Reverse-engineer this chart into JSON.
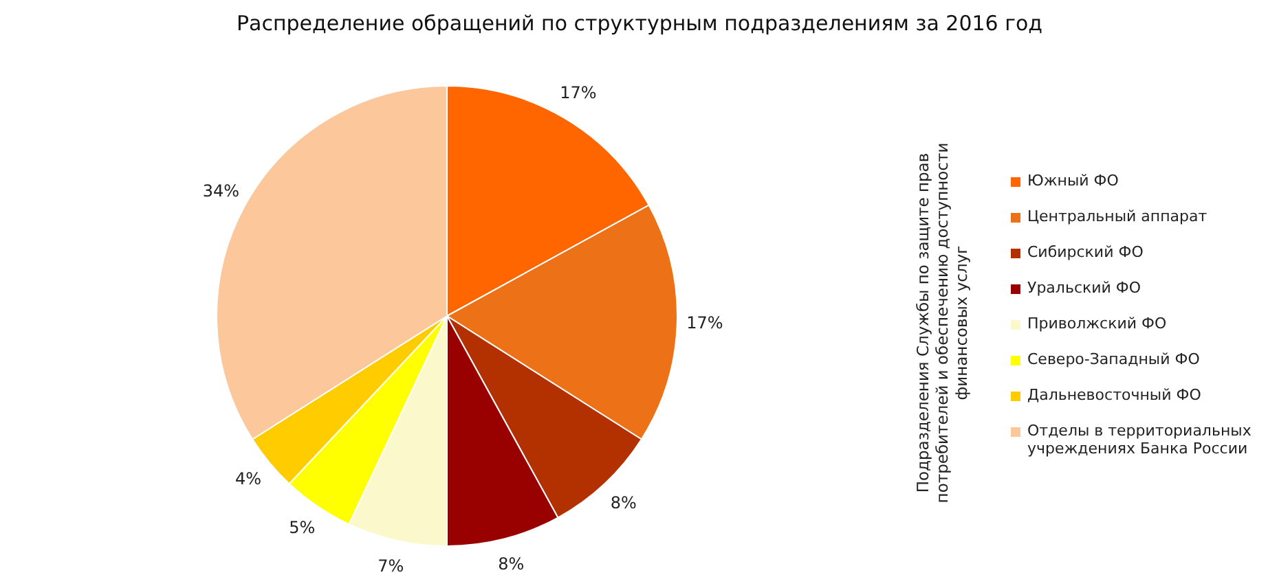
{
  "chart_data": {
    "type": "pie",
    "title": "Распределение обращений по структурным подразделениям за 2016 год",
    "legend_title": "Подразделения Службы по защите прав потребителей и обеспечению доступности финансовых  услуг",
    "legend": "right",
    "categories": [
      "Южный ФО",
      "Центральный аппарат",
      "Сибирский ФО",
      "Уральский ФО",
      "Приволжский ФО",
      "Северо-Западный ФО",
      "Дальневосточный ФО",
      "Отделы в территориальных учреждениях Банка России"
    ],
    "values": [
      17,
      17,
      8,
      8,
      7,
      5,
      4,
      34
    ],
    "value_labels": [
      "17%",
      "17%",
      "8%",
      "8%",
      "7%",
      "5%",
      "4%",
      "34%"
    ],
    "colors": [
      "#ff6600",
      "#ed7117",
      "#b33000",
      "#990000",
      "#fbf8cc",
      "#ffff00",
      "#ffcc00",
      "#fcc89b"
    ]
  }
}
